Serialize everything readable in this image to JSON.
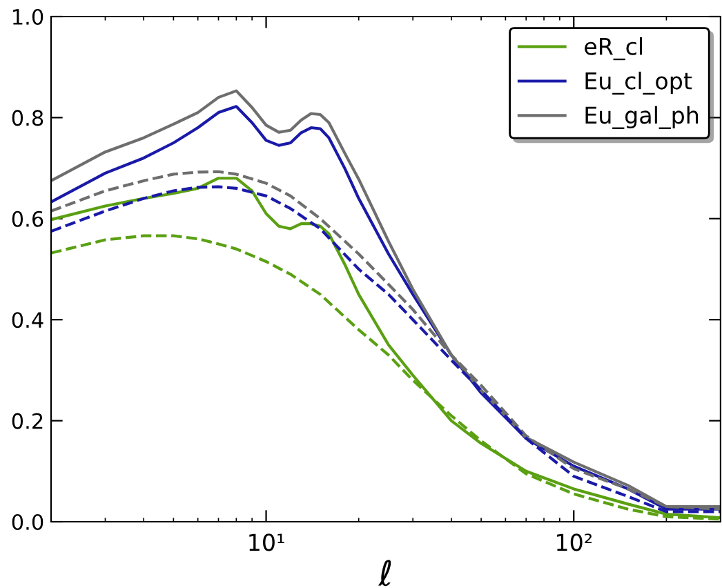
{
  "chart_data": {
    "type": "line",
    "xlabel": "ℓ",
    "log": "x",
    "xlim": [
      2,
      300
    ],
    "xticks": [
      {
        "value": 10,
        "label": "10¹"
      },
      {
        "value": 100,
        "label": "10²"
      }
    ],
    "ylim": [
      0,
      1.0
    ],
    "yticks": [
      {
        "value": 0,
        "label": "0.0"
      },
      0.2,
      0.4,
      0.6,
      0.8,
      {
        "value": 1.0,
        "label": "1.0"
      }
    ],
    "grid": false,
    "legend": "top right",
    "marker": "none",
    "series": [
      {
        "name": "eR_cl",
        "color": "#5aa012",
        "line_style": "solid",
        "x": [
          2,
          3,
          4,
          5,
          6,
          7,
          8,
          9,
          10,
          11,
          12,
          13,
          14,
          15,
          16,
          18,
          20,
          25,
          30,
          40,
          50,
          70,
          100,
          150,
          200,
          300
        ],
        "values": [
          0.598,
          0.625,
          0.64,
          0.65,
          0.66,
          0.68,
          0.68,
          0.655,
          0.61,
          0.585,
          0.58,
          0.59,
          0.59,
          0.585,
          0.57,
          0.51,
          0.45,
          0.35,
          0.29,
          0.2,
          0.155,
          0.1,
          0.065,
          0.035,
          0.015,
          0.008
        ]
      },
      {
        "name": "Eu_cl_opt",
        "color": "#1a1aa8",
        "line_style": "solid",
        "x": [
          2,
          3,
          4,
          5,
          6,
          7,
          8,
          9,
          10,
          11,
          12,
          13,
          14,
          15,
          16,
          18,
          20,
          25,
          30,
          40,
          50,
          70,
          100,
          150,
          200,
          300
        ],
        "values": [
          0.633,
          0.69,
          0.72,
          0.75,
          0.78,
          0.81,
          0.822,
          0.79,
          0.755,
          0.745,
          0.75,
          0.77,
          0.78,
          0.778,
          0.76,
          0.7,
          0.64,
          0.53,
          0.45,
          0.33,
          0.255,
          0.165,
          0.11,
          0.065,
          0.025,
          0.025
        ]
      },
      {
        "name": "Eu_gal_ph",
        "color": "#6e6e6e",
        "line_style": "solid",
        "x": [
          2,
          3,
          4,
          5,
          6,
          7,
          8,
          9,
          10,
          11,
          12,
          13,
          14,
          15,
          16,
          18,
          20,
          25,
          30,
          40,
          50,
          70,
          100,
          150,
          200,
          300
        ],
        "values": [
          0.675,
          0.732,
          0.76,
          0.787,
          0.81,
          0.84,
          0.853,
          0.82,
          0.785,
          0.771,
          0.775,
          0.795,
          0.808,
          0.806,
          0.79,
          0.73,
          0.678,
          0.555,
          0.46,
          0.33,
          0.26,
          0.167,
          0.118,
          0.072,
          0.03,
          0.03
        ]
      },
      {
        "color": "#6e6e6e",
        "line_style": "dashed",
        "x": [
          2,
          3,
          4,
          5,
          6,
          7,
          8,
          10,
          12,
          15,
          20,
          25,
          30,
          40,
          50,
          70,
          100,
          150,
          200,
          300
        ],
        "values": [
          0.615,
          0.655,
          0.675,
          0.688,
          0.692,
          0.693,
          0.688,
          0.67,
          0.645,
          0.6,
          0.53,
          0.47,
          0.42,
          0.33,
          0.27,
          0.17,
          0.105,
          0.065,
          0.03,
          0.025
        ]
      },
      {
        "color": "#1a1aa8",
        "line_style": "dashed",
        "x": [
          2,
          3,
          4,
          5,
          6,
          7,
          8,
          10,
          12,
          15,
          20,
          25,
          30,
          40,
          50,
          70,
          100,
          150,
          200,
          300
        ],
        "values": [
          0.575,
          0.615,
          0.64,
          0.655,
          0.662,
          0.663,
          0.66,
          0.645,
          0.62,
          0.58,
          0.5,
          0.45,
          0.4,
          0.32,
          0.26,
          0.165,
          0.09,
          0.05,
          0.02,
          0.02
        ]
      },
      {
        "color": "#5aa012",
        "line_style": "dashed",
        "x": [
          2,
          3,
          4,
          5,
          6,
          7,
          8,
          10,
          12,
          15,
          20,
          25,
          30,
          40,
          50,
          70,
          100,
          150,
          200,
          300
        ],
        "values": [
          0.532,
          0.558,
          0.566,
          0.566,
          0.56,
          0.55,
          0.54,
          0.515,
          0.49,
          0.45,
          0.38,
          0.33,
          0.28,
          0.21,
          0.16,
          0.095,
          0.055,
          0.025,
          0.01,
          0.005
        ]
      }
    ]
  }
}
